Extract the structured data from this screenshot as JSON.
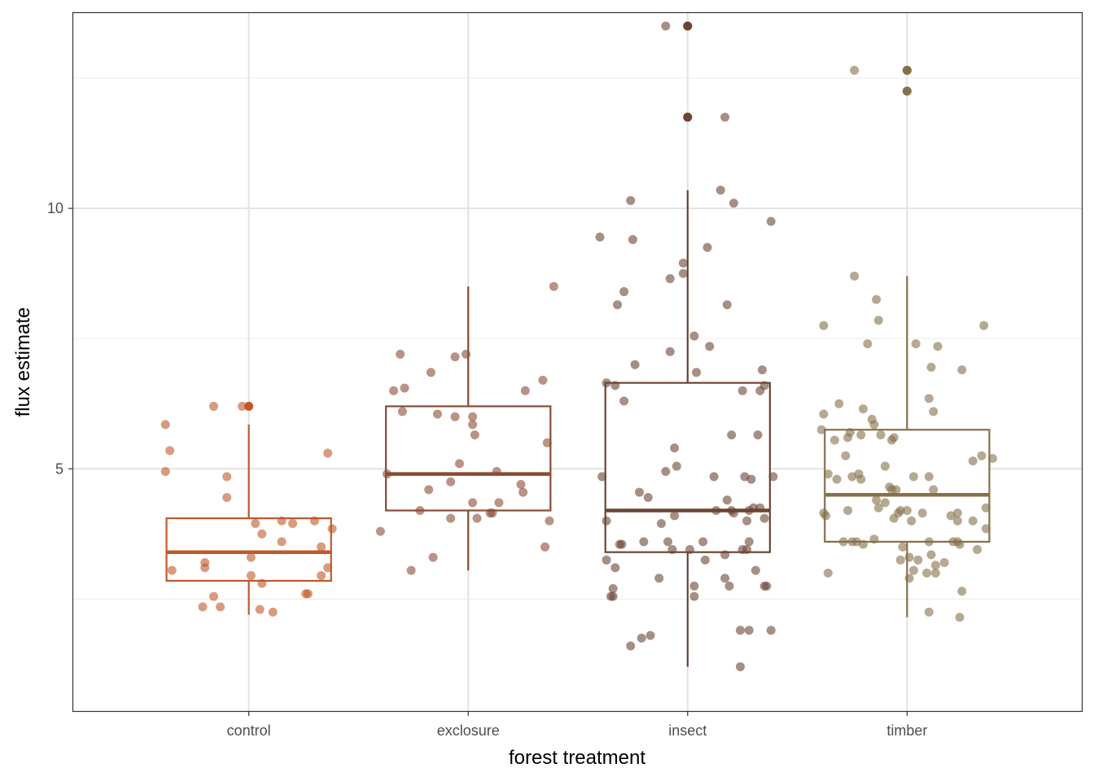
{
  "chart_data": {
    "type": "boxplot",
    "xlabel": "forest treatment",
    "ylabel": "flux estimate",
    "categories": [
      "control",
      "exclosure",
      "insect",
      "timber"
    ],
    "y_ticks": [
      5,
      10
    ],
    "y_tick_labels": [
      "5",
      "10"
    ],
    "ylim": [
      0.35,
      13.75
    ],
    "grid": true,
    "colors": {
      "control": "#C0582A",
      "exclosure": "#8A4B33",
      "insect": "#6B4534",
      "timber": "#85704A"
    },
    "groups": [
      {
        "name": "control",
        "min": 2.2,
        "q1": 2.85,
        "median": 3.4,
        "q3": 4.05,
        "max": 5.85,
        "outliers": [
          6.2
        ],
        "points": [
          [
            -0.38,
            5.85
          ],
          [
            -0.36,
            5.35
          ],
          [
            -0.38,
            4.95
          ],
          [
            -0.16,
            6.2
          ],
          [
            -0.03,
            6.2
          ],
          [
            -0.1,
            4.85
          ],
          [
            -0.1,
            4.45
          ],
          [
            -0.35,
            3.05
          ],
          [
            -0.2,
            3.2
          ],
          [
            -0.2,
            3.1
          ],
          [
            0.03,
            3.95
          ],
          [
            0.06,
            3.75
          ],
          [
            0.15,
            4.0
          ],
          [
            0.2,
            3.95
          ],
          [
            0.3,
            4.0
          ],
          [
            0.36,
            5.3
          ],
          [
            0.38,
            3.85
          ],
          [
            0.33,
            3.5
          ],
          [
            0.15,
            3.6
          ],
          [
            0.01,
            3.3
          ],
          [
            0.01,
            2.95
          ],
          [
            0.06,
            2.8
          ],
          [
            0.27,
            2.6
          ],
          [
            0.26,
            2.6
          ],
          [
            0.33,
            2.95
          ],
          [
            0.36,
            3.1
          ],
          [
            -0.16,
            2.55
          ],
          [
            -0.21,
            2.35
          ],
          [
            -0.13,
            2.35
          ],
          [
            0.05,
            2.3
          ],
          [
            0.11,
            2.25
          ]
        ]
      },
      {
        "name": "exclosure",
        "min": 3.05,
        "q1": 4.2,
        "median": 4.9,
        "q3": 6.2,
        "max": 8.5,
        "outliers": [],
        "points": [
          [
            -0.31,
            7.2
          ],
          [
            -0.34,
            6.5
          ],
          [
            -0.29,
            6.55
          ],
          [
            -0.17,
            6.85
          ],
          [
            -0.06,
            7.15
          ],
          [
            -0.01,
            7.2
          ],
          [
            0.26,
            6.5
          ],
          [
            0.34,
            6.7
          ],
          [
            0.39,
            8.5
          ],
          [
            -0.3,
            6.1
          ],
          [
            -0.14,
            6.05
          ],
          [
            -0.06,
            6.0
          ],
          [
            0.02,
            6.0
          ],
          [
            0.02,
            5.85
          ],
          [
            0.03,
            5.65
          ],
          [
            0.36,
            5.5
          ],
          [
            -0.04,
            5.1
          ],
          [
            -0.37,
            4.9
          ],
          [
            -0.08,
            4.75
          ],
          [
            0.13,
            4.95
          ],
          [
            0.24,
            4.7
          ],
          [
            0.25,
            4.55
          ],
          [
            -0.18,
            4.6
          ],
          [
            0.02,
            4.35
          ],
          [
            0.14,
            4.35
          ],
          [
            -0.22,
            4.2
          ],
          [
            0.1,
            4.15
          ],
          [
            0.11,
            4.15
          ],
          [
            -0.08,
            4.05
          ],
          [
            0.04,
            4.05
          ],
          [
            0.37,
            4.0
          ],
          [
            -0.4,
            3.8
          ],
          [
            0.35,
            3.5
          ],
          [
            -0.16,
            3.3
          ],
          [
            -0.26,
            3.05
          ]
        ]
      },
      {
        "name": "insect",
        "min": 1.2,
        "q1": 3.4,
        "median": 4.2,
        "q3": 6.65,
        "max": 10.35,
        "outliers": [
          13.5,
          11.75
        ],
        "points": [
          [
            -0.1,
            13.5
          ],
          [
            0.0,
            13.5
          ],
          [
            0.0,
            11.75
          ],
          [
            0.17,
            11.75
          ],
          [
            -0.26,
            10.15
          ],
          [
            0.15,
            10.35
          ],
          [
            0.21,
            10.1
          ],
          [
            0.38,
            9.75
          ],
          [
            -0.4,
            9.45
          ],
          [
            -0.25,
            9.4
          ],
          [
            0.09,
            9.25
          ],
          [
            -0.08,
            8.65
          ],
          [
            -0.02,
            8.95
          ],
          [
            -0.02,
            8.75
          ],
          [
            -0.29,
            8.4
          ],
          [
            -0.32,
            8.15
          ],
          [
            0.18,
            8.15
          ],
          [
            0.03,
            7.55
          ],
          [
            0.1,
            7.35
          ],
          [
            -0.08,
            7.25
          ],
          [
            -0.24,
            7.0
          ],
          [
            0.04,
            6.85
          ],
          [
            0.34,
            6.9
          ],
          [
            -0.37,
            6.65
          ],
          [
            -0.33,
            6.6
          ],
          [
            0.35,
            6.6
          ],
          [
            0.25,
            6.5
          ],
          [
            0.33,
            6.5
          ],
          [
            -0.29,
            6.3
          ],
          [
            0.2,
            5.65
          ],
          [
            0.32,
            5.65
          ],
          [
            -0.06,
            5.4
          ],
          [
            -0.05,
            5.05
          ],
          [
            -0.1,
            4.95
          ],
          [
            0.12,
            4.85
          ],
          [
            0.26,
            4.85
          ],
          [
            0.29,
            4.8
          ],
          [
            0.39,
            4.85
          ],
          [
            -0.39,
            4.85
          ],
          [
            -0.22,
            4.55
          ],
          [
            -0.18,
            4.45
          ],
          [
            0.18,
            4.4
          ],
          [
            0.3,
            4.25
          ],
          [
            0.28,
            4.2
          ],
          [
            0.33,
            4.25
          ],
          [
            0.13,
            4.2
          ],
          [
            0.2,
            4.2
          ],
          [
            0.21,
            4.15
          ],
          [
            -0.06,
            4.1
          ],
          [
            0.27,
            4.0
          ],
          [
            0.35,
            4.05
          ],
          [
            -0.37,
            4.0
          ],
          [
            -0.12,
            3.95
          ],
          [
            -0.31,
            3.55
          ],
          [
            -0.3,
            3.55
          ],
          [
            -0.2,
            3.6
          ],
          [
            -0.09,
            3.6
          ],
          [
            -0.07,
            3.45
          ],
          [
            0.07,
            3.6
          ],
          [
            0.01,
            3.45
          ],
          [
            0.27,
            3.45
          ],
          [
            0.25,
            3.45
          ],
          [
            0.28,
            3.6
          ],
          [
            -0.37,
            3.25
          ],
          [
            -0.33,
            3.1
          ],
          [
            0.08,
            3.25
          ],
          [
            0.17,
            3.35
          ],
          [
            0.31,
            3.05
          ],
          [
            -0.13,
            2.9
          ],
          [
            0.17,
            2.9
          ],
          [
            0.19,
            2.75
          ],
          [
            0.35,
            2.75
          ],
          [
            0.36,
            2.75
          ],
          [
            0.03,
            2.75
          ],
          [
            -0.34,
            2.7
          ],
          [
            -0.34,
            2.55
          ],
          [
            -0.35,
            2.55
          ],
          [
            0.03,
            2.55
          ],
          [
            -0.21,
            1.75
          ],
          [
            -0.17,
            1.8
          ],
          [
            0.24,
            1.9
          ],
          [
            0.28,
            1.9
          ],
          [
            0.38,
            1.9
          ],
          [
            -0.26,
            1.6
          ],
          [
            0.24,
            1.2
          ]
        ]
      },
      {
        "name": "timber",
        "min": 2.15,
        "q1": 3.6,
        "median": 4.5,
        "q3": 5.75,
        "max": 8.7,
        "outliers": [
          12.65,
          12.25
        ],
        "points": [
          [
            -0.24,
            12.65
          ],
          [
            0.0,
            12.65
          ],
          [
            0.0,
            12.25
          ],
          [
            -0.24,
            8.7
          ],
          [
            -0.14,
            8.25
          ],
          [
            -0.13,
            7.85
          ],
          [
            -0.38,
            7.75
          ],
          [
            -0.18,
            7.4
          ],
          [
            0.04,
            7.4
          ],
          [
            0.14,
            7.35
          ],
          [
            0.35,
            7.75
          ],
          [
            0.11,
            6.95
          ],
          [
            0.25,
            6.9
          ],
          [
            0.1,
            6.35
          ],
          [
            0.12,
            6.1
          ],
          [
            -0.31,
            6.25
          ],
          [
            -0.38,
            6.05
          ],
          [
            -0.2,
            6.15
          ],
          [
            -0.16,
            5.95
          ],
          [
            -0.15,
            5.85
          ],
          [
            -0.39,
            5.75
          ],
          [
            -0.26,
            5.7
          ],
          [
            -0.27,
            5.6
          ],
          [
            -0.12,
            5.65
          ],
          [
            -0.06,
            5.6
          ],
          [
            -0.07,
            5.55
          ],
          [
            -0.21,
            5.65
          ],
          [
            -0.33,
            5.55
          ],
          [
            -0.28,
            5.25
          ],
          [
            0.3,
            5.15
          ],
          [
            0.39,
            5.2
          ],
          [
            0.34,
            5.25
          ],
          [
            -0.1,
            5.05
          ],
          [
            -0.36,
            4.9
          ],
          [
            -0.25,
            4.85
          ],
          [
            -0.22,
            4.9
          ],
          [
            -0.32,
            4.8
          ],
          [
            -0.21,
            4.8
          ],
          [
            0.03,
            4.85
          ],
          [
            0.1,
            4.85
          ],
          [
            0.12,
            4.6
          ],
          [
            -0.08,
            4.65
          ],
          [
            -0.07,
            4.6
          ],
          [
            -0.05,
            4.6
          ],
          [
            -0.14,
            4.4
          ],
          [
            -0.1,
            4.35
          ],
          [
            -0.13,
            4.25
          ],
          [
            -0.03,
            4.2
          ],
          [
            0.0,
            4.2
          ],
          [
            0.07,
            4.15
          ],
          [
            0.2,
            4.1
          ],
          [
            0.23,
            4.15
          ],
          [
            -0.06,
            4.05
          ],
          [
            0.3,
            4.0
          ],
          [
            0.02,
            4.0
          ],
          [
            0.36,
            4.25
          ],
          [
            -0.38,
            4.15
          ],
          [
            -0.37,
            4.1
          ],
          [
            -0.27,
            4.2
          ],
          [
            -0.04,
            4.15
          ],
          [
            0.23,
            4.0
          ],
          [
            0.36,
            3.85
          ],
          [
            -0.29,
            3.6
          ],
          [
            -0.25,
            3.6
          ],
          [
            -0.2,
            3.55
          ],
          [
            -0.23,
            3.6
          ],
          [
            -0.15,
            3.65
          ],
          [
            0.1,
            3.6
          ],
          [
            0.21,
            3.6
          ],
          [
            0.23,
            3.6
          ],
          [
            0.24,
            3.55
          ],
          [
            0.32,
            3.45
          ],
          [
            -0.02,
            3.5
          ],
          [
            0.01,
            3.3
          ],
          [
            0.11,
            3.35
          ],
          [
            -0.03,
            3.25
          ],
          [
            0.05,
            3.25
          ],
          [
            0.17,
            3.2
          ],
          [
            0.13,
            3.15
          ],
          [
            0.03,
            3.05
          ],
          [
            0.09,
            3.0
          ],
          [
            0.13,
            3.0
          ],
          [
            -0.36,
            3.0
          ],
          [
            0.01,
            2.9
          ],
          [
            0.25,
            2.65
          ],
          [
            0.1,
            2.25
          ],
          [
            0.24,
            2.15
          ]
        ]
      }
    ]
  }
}
